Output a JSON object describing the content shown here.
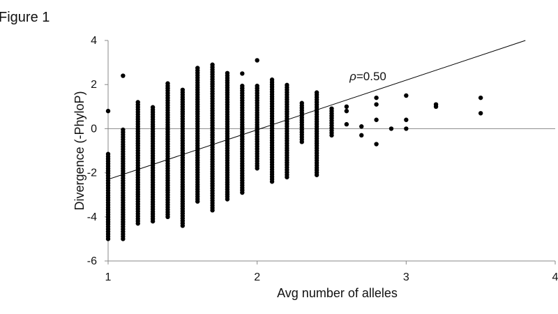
{
  "figure_label": "Figure 1",
  "chart_data": {
    "type": "scatter",
    "title": "",
    "xlabel": "Avg number of alleles",
    "ylabel": "Divergence (-PhyloP)",
    "xlim": [
      1,
      4
    ],
    "ylim": [
      -6,
      4
    ],
    "xticks": [
      1,
      2,
      3,
      4
    ],
    "yticks": [
      -6,
      -4,
      -2,
      0,
      2,
      4
    ],
    "grid": false,
    "legend": "none",
    "marker_color": "#000000",
    "zero_line": 0,
    "trendline": {
      "x": [
        1,
        3.8
      ],
      "y": [
        -2.3,
        4.0
      ]
    },
    "annotation": {
      "symbol": "ρ",
      "text": "=0.50",
      "x": 2.62,
      "y": 2.2
    },
    "columns": [
      {
        "x": 1.0,
        "y_min": -5.0,
        "y_max": -1.1,
        "extra": [
          0.8
        ]
      },
      {
        "x": 1.1,
        "y_min": -5.0,
        "y_max": 0.0,
        "extra": [
          2.4
        ]
      },
      {
        "x": 1.2,
        "y_min": -4.3,
        "y_max": 1.2
      },
      {
        "x": 1.3,
        "y_min": -4.2,
        "y_max": 1.0
      },
      {
        "x": 1.4,
        "y_min": -4.0,
        "y_max": 2.1
      },
      {
        "x": 1.5,
        "y_min": -4.4,
        "y_max": 1.8
      },
      {
        "x": 1.6,
        "y_min": -3.3,
        "y_max": 2.8
      },
      {
        "x": 1.7,
        "y_min": -3.7,
        "y_max": 2.9
      },
      {
        "x": 1.8,
        "y_min": -3.2,
        "y_max": 2.6
      },
      {
        "x": 1.9,
        "y_min": -2.9,
        "y_max": 2.0,
        "extra": [
          2.5
        ]
      },
      {
        "x": 2.0,
        "y_min": -1.8,
        "y_max": 2.0,
        "extra": [
          3.1
        ]
      },
      {
        "x": 2.1,
        "y_min": -2.4,
        "y_max": 2.3
      },
      {
        "x": 2.2,
        "y_min": -2.2,
        "y_max": 2.0
      },
      {
        "x": 2.3,
        "y_min": -0.6,
        "y_max": 1.2
      },
      {
        "x": 2.4,
        "y_min": -2.1,
        "y_max": 1.7
      },
      {
        "x": 2.5,
        "y_min": -0.3,
        "y_max": 1.0
      }
    ],
    "points": [
      {
        "x": 2.6,
        "y": 1.0
      },
      {
        "x": 2.6,
        "y": 0.8
      },
      {
        "x": 2.6,
        "y": 0.2
      },
      {
        "x": 2.7,
        "y": 0.1
      },
      {
        "x": 2.7,
        "y": -0.3
      },
      {
        "x": 2.8,
        "y": 1.4
      },
      {
        "x": 2.8,
        "y": 1.1
      },
      {
        "x": 2.8,
        "y": 0.4
      },
      {
        "x": 2.8,
        "y": -0.7
      },
      {
        "x": 2.9,
        "y": 0.0
      },
      {
        "x": 3.0,
        "y": 1.5
      },
      {
        "x": 3.0,
        "y": 0.4
      },
      {
        "x": 3.0,
        "y": 0.0
      },
      {
        "x": 3.2,
        "y": 1.1
      },
      {
        "x": 3.2,
        "y": 1.0
      },
      {
        "x": 3.5,
        "y": 1.4
      },
      {
        "x": 3.5,
        "y": 0.7
      }
    ]
  }
}
